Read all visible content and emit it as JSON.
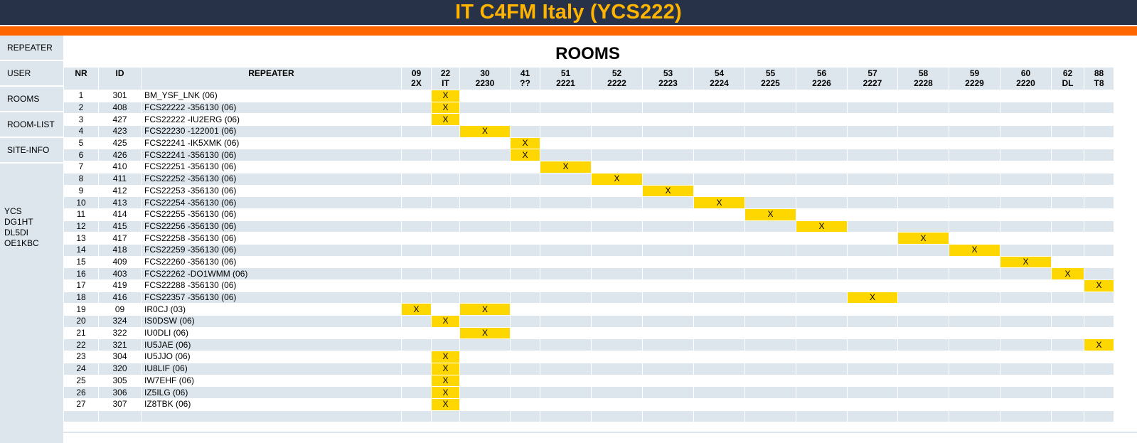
{
  "header": {
    "title": "IT C4FM Italy (YCS222)"
  },
  "sidebar": {
    "items": [
      {
        "label": "REPEATER"
      },
      {
        "label": "USER"
      },
      {
        "label": "ROOMS"
      },
      {
        "label": "ROOM-LIST"
      },
      {
        "label": "SITE-INFO"
      }
    ],
    "info": [
      "YCS",
      "DG1HT",
      "DL5DI",
      "OE1KBC"
    ]
  },
  "main": {
    "title": "ROOMS",
    "columns": {
      "nr": "NR",
      "id": "ID",
      "repeater": "REPEATER"
    },
    "rooms": [
      {
        "code": "09",
        "sub": "2X"
      },
      {
        "code": "22",
        "sub": "IT"
      },
      {
        "code": "30",
        "sub": "2230"
      },
      {
        "code": "41",
        "sub": "??"
      },
      {
        "code": "51",
        "sub": "2221"
      },
      {
        "code": "52",
        "sub": "2222"
      },
      {
        "code": "53",
        "sub": "2223"
      },
      {
        "code": "54",
        "sub": "2224"
      },
      {
        "code": "55",
        "sub": "2225"
      },
      {
        "code": "56",
        "sub": "2226"
      },
      {
        "code": "57",
        "sub": "2227"
      },
      {
        "code": "58",
        "sub": "2228"
      },
      {
        "code": "59",
        "sub": "2229"
      },
      {
        "code": "60",
        "sub": "2220"
      },
      {
        "code": "62",
        "sub": "DL"
      },
      {
        "code": "88",
        "sub": "T8"
      }
    ],
    "mark": "X",
    "rows": [
      {
        "nr": "1",
        "id": "301",
        "repeater": "BM_YSF_LNK (06)",
        "rooms": [
          1
        ]
      },
      {
        "nr": "2",
        "id": "408",
        "repeater": "FCS22222 -356130 (06)",
        "rooms": [
          1
        ]
      },
      {
        "nr": "3",
        "id": "427",
        "repeater": "FCS22222 -IU2ERG (06)",
        "rooms": [
          1
        ]
      },
      {
        "nr": "4",
        "id": "423",
        "repeater": "FCS22230 -122001 (06)",
        "rooms": [
          2
        ]
      },
      {
        "nr": "5",
        "id": "425",
        "repeater": "FCS22241 -IK5XMK (06)",
        "rooms": [
          3
        ]
      },
      {
        "nr": "6",
        "id": "426",
        "repeater": "FCS22241 -356130 (06)",
        "rooms": [
          3
        ]
      },
      {
        "nr": "7",
        "id": "410",
        "repeater": "FCS22251 -356130 (06)",
        "rooms": [
          4
        ]
      },
      {
        "nr": "8",
        "id": "411",
        "repeater": "FCS22252 -356130 (06)",
        "rooms": [
          5
        ]
      },
      {
        "nr": "9",
        "id": "412",
        "repeater": "FCS22253 -356130 (06)",
        "rooms": [
          6
        ]
      },
      {
        "nr": "10",
        "id": "413",
        "repeater": "FCS22254 -356130 (06)",
        "rooms": [
          7
        ]
      },
      {
        "nr": "11",
        "id": "414",
        "repeater": "FCS22255 -356130 (06)",
        "rooms": [
          8
        ]
      },
      {
        "nr": "12",
        "id": "415",
        "repeater": "FCS22256 -356130 (06)",
        "rooms": [
          9
        ]
      },
      {
        "nr": "13",
        "id": "417",
        "repeater": "FCS22258 -356130 (06)",
        "rooms": [
          11
        ]
      },
      {
        "nr": "14",
        "id": "418",
        "repeater": "FCS22259 -356130 (06)",
        "rooms": [
          12
        ]
      },
      {
        "nr": "15",
        "id": "409",
        "repeater": "FCS22260 -356130 (06)",
        "rooms": [
          13
        ]
      },
      {
        "nr": "16",
        "id": "403",
        "repeater": "FCS22262 -DO1WMM (06)",
        "rooms": [
          14
        ]
      },
      {
        "nr": "17",
        "id": "419",
        "repeater": "FCS22288 -356130 (06)",
        "rooms": [
          15
        ]
      },
      {
        "nr": "18",
        "id": "416",
        "repeater": "FCS22357 -356130 (06)",
        "rooms": [
          10
        ]
      },
      {
        "nr": "19",
        "id": "09",
        "repeater": "IR0CJ (03)",
        "rooms": [
          0,
          2
        ]
      },
      {
        "nr": "20",
        "id": "324",
        "repeater": "IS0DSW (06)",
        "rooms": [
          1
        ]
      },
      {
        "nr": "21",
        "id": "322",
        "repeater": "IU0DLI (06)",
        "rooms": [
          2
        ]
      },
      {
        "nr": "22",
        "id": "321",
        "repeater": "IU5JAE (06)",
        "rooms": [
          15
        ]
      },
      {
        "nr": "23",
        "id": "304",
        "repeater": "IU5JJO (06)",
        "rooms": [
          1
        ]
      },
      {
        "nr": "24",
        "id": "320",
        "repeater": "IU8LIF (06)",
        "rooms": [
          1
        ]
      },
      {
        "nr": "25",
        "id": "305",
        "repeater": "IW7EHF (06)",
        "rooms": [
          1
        ]
      },
      {
        "nr": "26",
        "id": "306",
        "repeater": "IZ5ILG (06)",
        "rooms": [
          1
        ]
      },
      {
        "nr": "27",
        "id": "307",
        "repeater": "IZ8TBK (06)",
        "rooms": [
          1
        ]
      }
    ]
  },
  "colors": {
    "header_bg": "#273148",
    "title": "#ffb400",
    "accent_bar": "#ff6600",
    "row_alt": "#dde6ed",
    "mark_fill": "#ffd700"
  }
}
